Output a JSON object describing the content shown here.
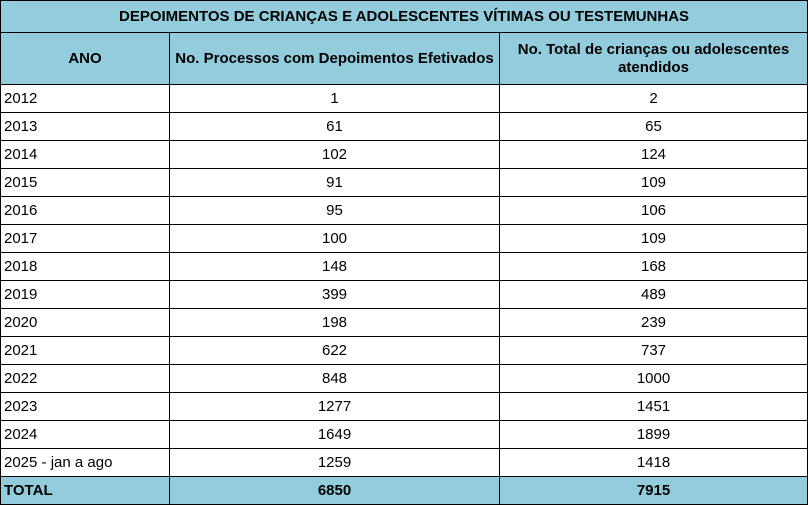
{
  "table": {
    "title": "DEPOIMENTOS DE CRIANÇAS E ADOLESCENTES VÍTIMAS OU TESTEMUNHAS",
    "headers": {
      "year": "ANO",
      "processes": "No. Processos com Depoimentos Efetivados",
      "attended": "No. Total de crianças ou adolescentes atendidos"
    },
    "rows": [
      {
        "year": "2012",
        "processes": "1",
        "attended": "2"
      },
      {
        "year": "2013",
        "processes": "61",
        "attended": "65"
      },
      {
        "year": "2014",
        "processes": "102",
        "attended": "124"
      },
      {
        "year": "2015",
        "processes": "91",
        "attended": "109"
      },
      {
        "year": "2016",
        "processes": "95",
        "attended": "106"
      },
      {
        "year": "2017",
        "processes": "100",
        "attended": "109"
      },
      {
        "year": "2018",
        "processes": "148",
        "attended": "168"
      },
      {
        "year": "2019",
        "processes": "399",
        "attended": "489"
      },
      {
        "year": "2020",
        "processes": "198",
        "attended": "239"
      },
      {
        "year": "2021",
        "processes": "622",
        "attended": "737"
      },
      {
        "year": "2022",
        "processes": "848",
        "attended": "1000"
      },
      {
        "year": "2023",
        "processes": "1277",
        "attended": "1451"
      },
      {
        "year": "2024",
        "processes": "1649",
        "attended": "1899"
      },
      {
        "year": "2025 - jan a ago",
        "processes": "1259",
        "attended": "1418"
      }
    ],
    "total": {
      "label": "TOTAL",
      "processes": "6850",
      "attended": "7915"
    },
    "colors": {
      "header_fill": "#93cddd",
      "border": "#000000"
    }
  }
}
